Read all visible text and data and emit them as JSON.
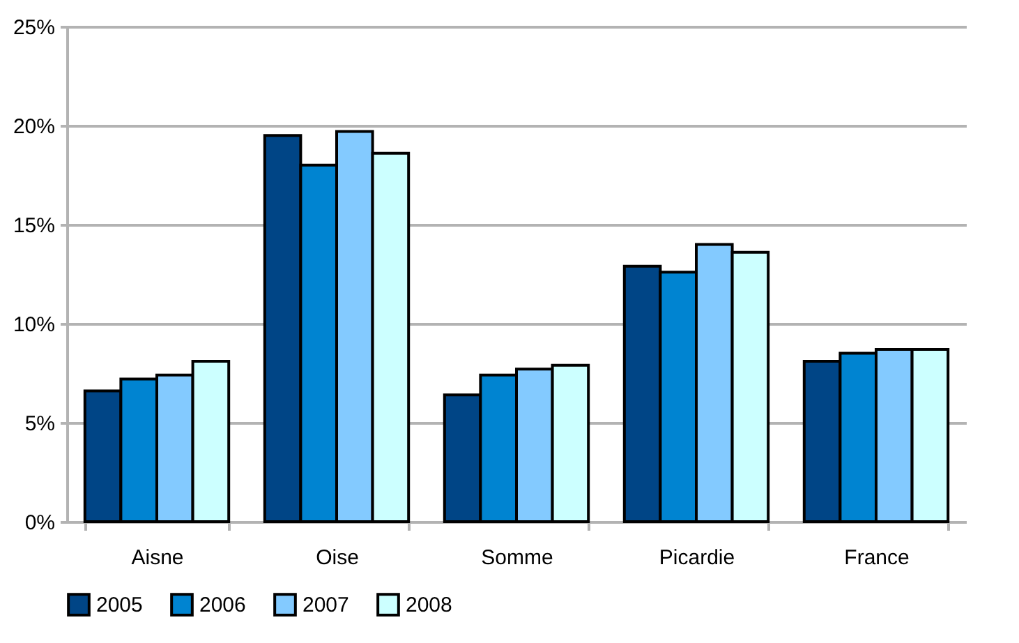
{
  "chart_data": {
    "type": "bar",
    "categories": [
      "Aisne",
      "Oise",
      "Somme",
      "Picardie",
      "France"
    ],
    "series": [
      {
        "name": "2005",
        "color": "#004586",
        "values": [
          6.6,
          19.5,
          6.4,
          12.9,
          8.1
        ]
      },
      {
        "name": "2006",
        "color": "#0084d1",
        "values": [
          7.2,
          18.0,
          7.4,
          12.6,
          8.5
        ]
      },
      {
        "name": "2007",
        "color": "#83caff",
        "values": [
          7.4,
          19.7,
          7.7,
          14.0,
          8.7
        ]
      },
      {
        "name": "2008",
        "color": "#ccffff",
        "values": [
          8.1,
          18.6,
          7.9,
          13.6,
          8.7
        ]
      }
    ],
    "ylim": [
      0,
      25
    ],
    "yticks": [
      {
        "value": 0,
        "label": "0%"
      },
      {
        "value": 5,
        "label": "5%"
      },
      {
        "value": 10,
        "label": "10%"
      },
      {
        "value": 15,
        "label": "15%"
      },
      {
        "value": 20,
        "label": "20%"
      },
      {
        "value": 25,
        "label": "25%"
      }
    ],
    "grid": "y",
    "legend": "bottom"
  }
}
